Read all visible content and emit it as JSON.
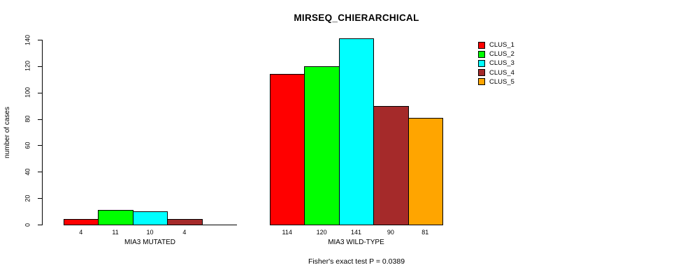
{
  "chart_data": {
    "type": "bar",
    "title": "MIRSEQ_CHIERARCHICAL",
    "xlabel": "",
    "ylabel": "number of cases",
    "ylim": [
      0,
      140
    ],
    "yticks": [
      0,
      20,
      40,
      60,
      80,
      100,
      120,
      140
    ],
    "grid": false,
    "legend_position": "top-right",
    "legend": [
      {
        "label": "CLUS_1",
        "color": "#FF0000"
      },
      {
        "label": "CLUS_2",
        "color": "#00FF00"
      },
      {
        "label": "CLUS_3",
        "color": "#00FFFF"
      },
      {
        "label": "CLUS_4",
        "color": "#A52A2A"
      },
      {
        "label": "CLUS_5",
        "color": "#FFA500"
      }
    ],
    "groups": [
      {
        "label": "MIA3 MUTATED",
        "values": [
          4,
          11,
          10,
          4,
          0
        ],
        "bar_labels": [
          "4",
          "11",
          "10",
          "4",
          ""
        ]
      },
      {
        "label": "MIA3 WILD-TYPE",
        "values": [
          114,
          120,
          141,
          90,
          81
        ],
        "bar_labels": [
          "114",
          "120",
          "141",
          "90",
          "81"
        ]
      }
    ],
    "series": [
      {
        "name": "CLUS_1",
        "color": "#FF0000",
        "values": [
          4,
          114
        ]
      },
      {
        "name": "CLUS_2",
        "color": "#00FF00",
        "values": [
          11,
          120
        ]
      },
      {
        "name": "CLUS_3",
        "color": "#00FFFF",
        "values": [
          10,
          141
        ]
      },
      {
        "name": "CLUS_4",
        "color": "#A52A2A",
        "values": [
          4,
          90
        ]
      },
      {
        "name": "CLUS_5",
        "color": "#FFA500",
        "values": [
          0,
          81
        ]
      }
    ],
    "annotation": "Fisher's exact test P = 0.0389"
  },
  "colors": {
    "axis": "#000000",
    "text": "#000000",
    "background": "#FFFFFF"
  }
}
